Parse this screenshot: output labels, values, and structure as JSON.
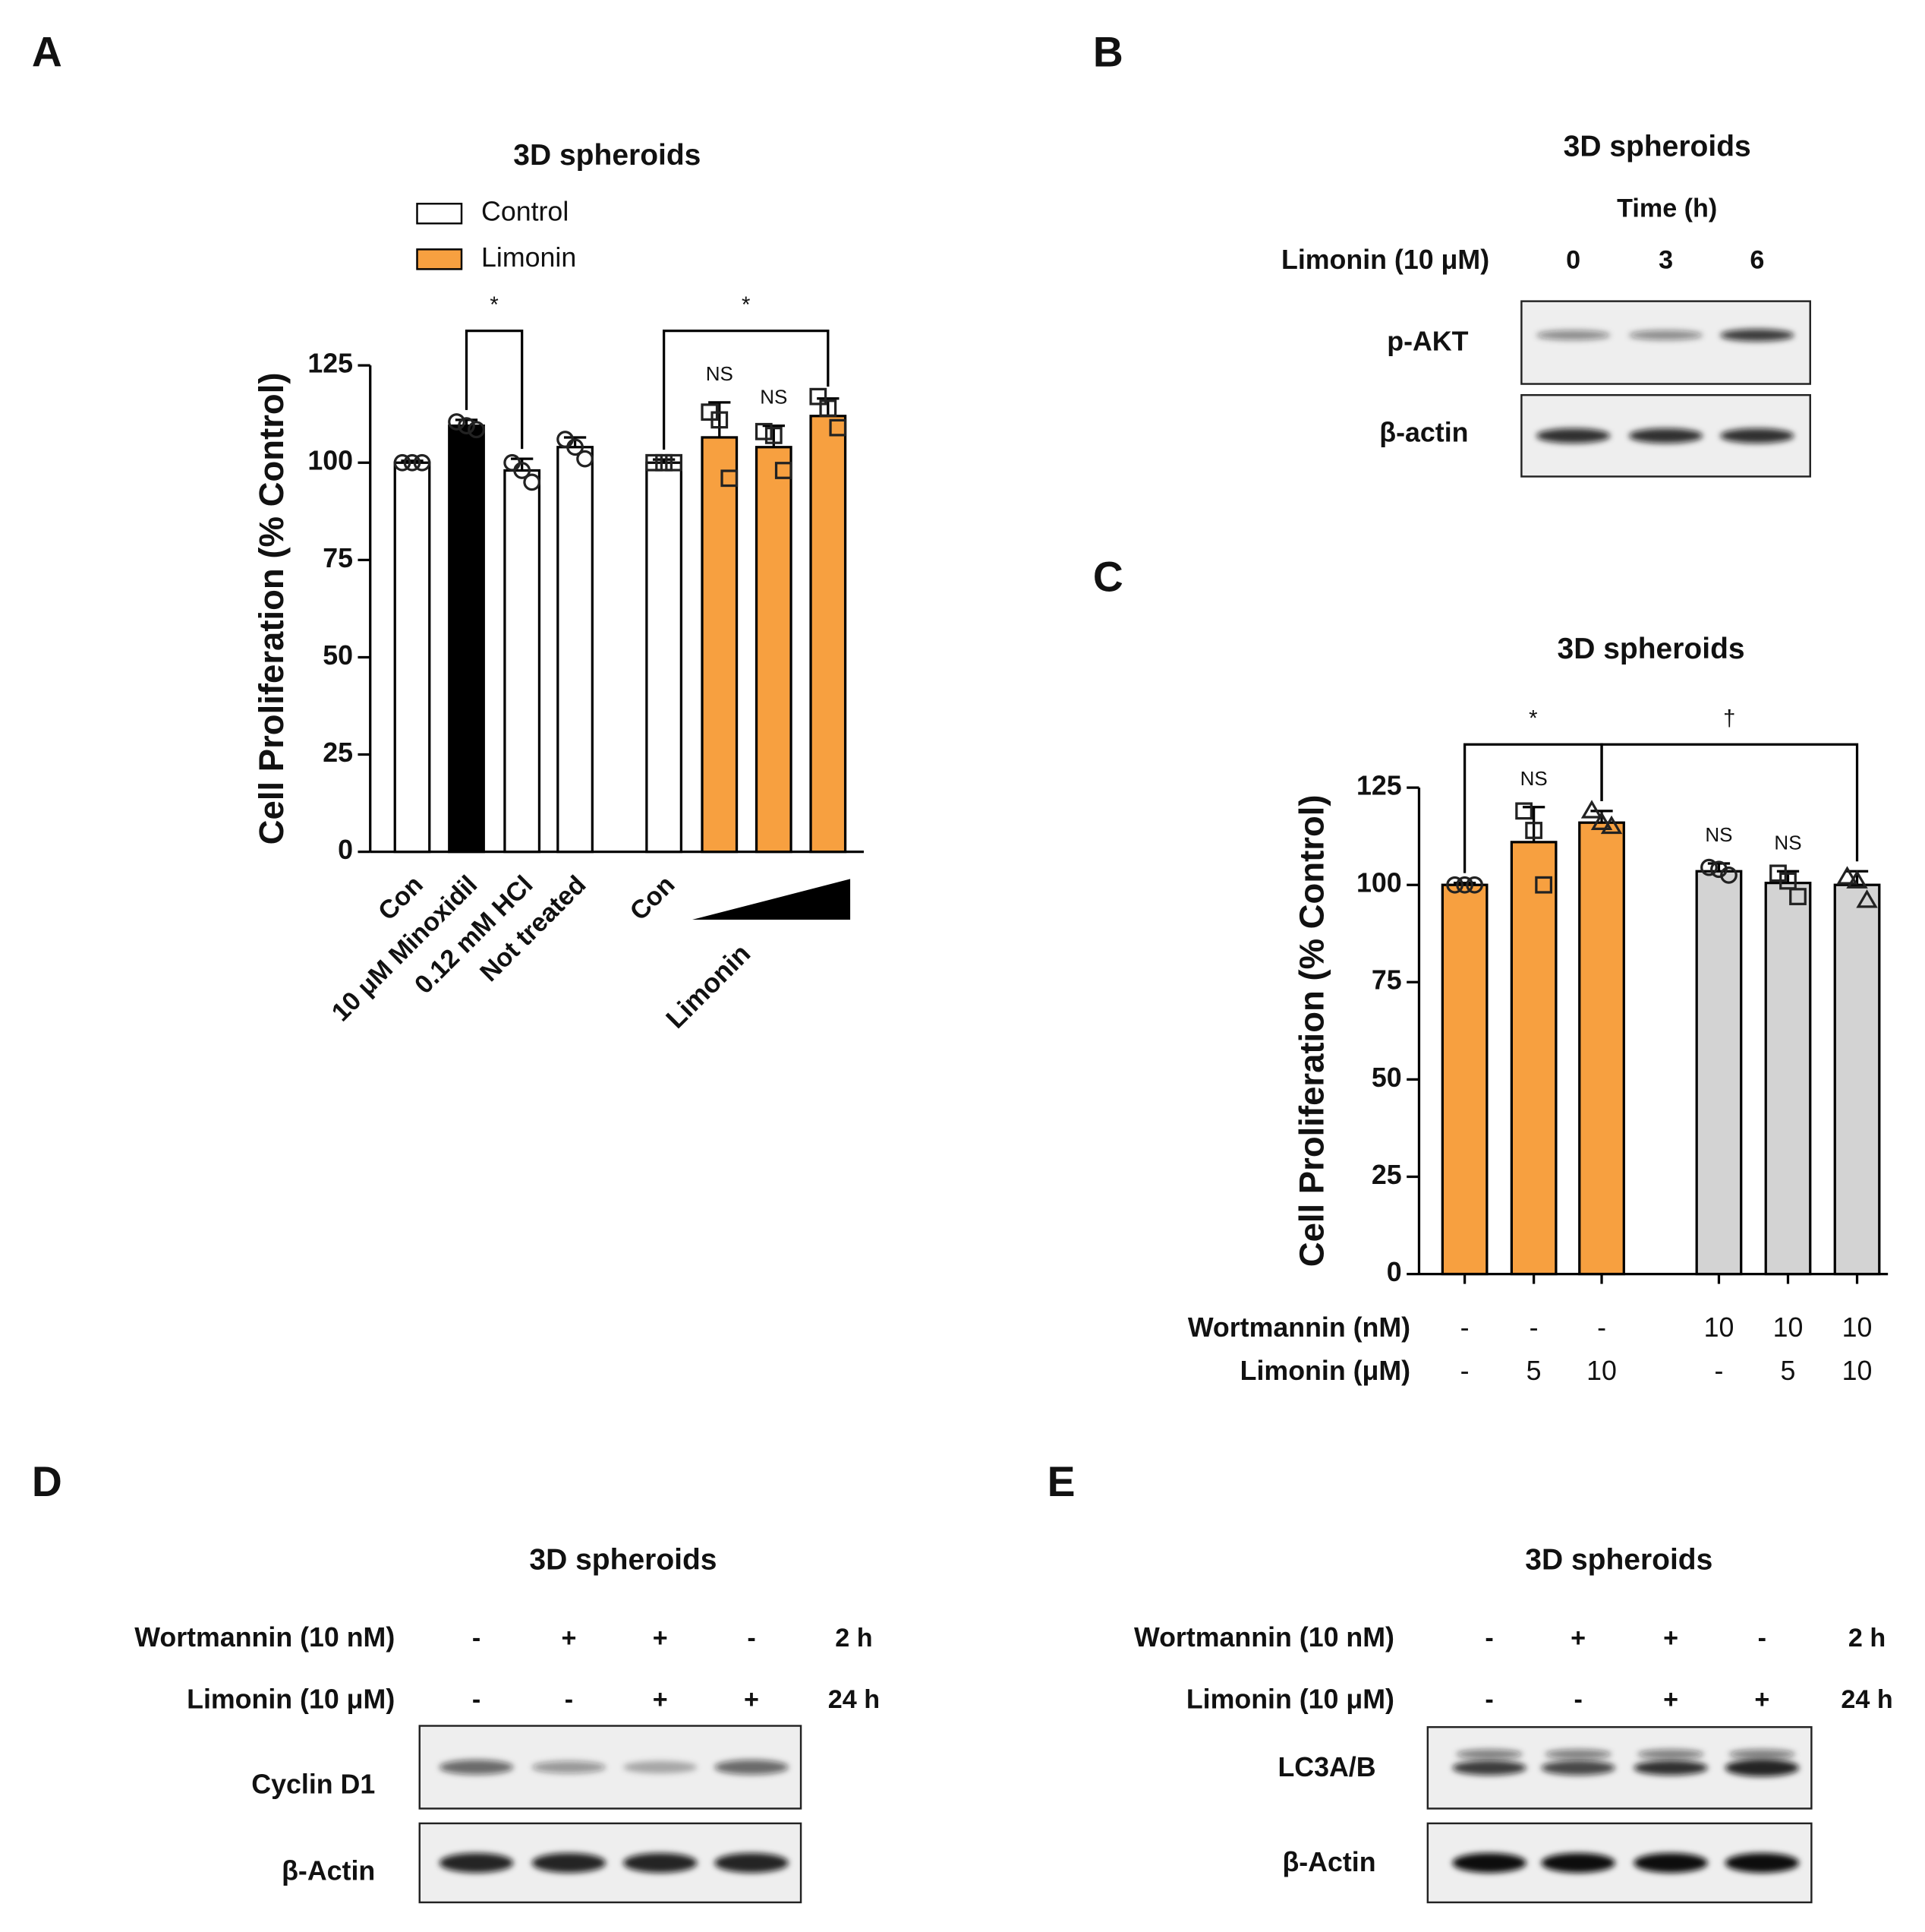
{
  "chart_data": [
    {
      "type": "bar",
      "panel": "A",
      "title": "3D spheroids",
      "ylabel": "Cell Proliferation (% Control)",
      "legend": [
        {
          "name": "Control",
          "color": "#ffffff"
        },
        {
          "name": "Limonin",
          "color": "#f7a040"
        }
      ],
      "categories": [
        "Con",
        "10 μM  Minoxidil",
        "0.12 mM HCl",
        "Not treated",
        "Con",
        null,
        null,
        null
      ],
      "group_label": "Limonin",
      "values": [
        100,
        109.5,
        98,
        104,
        100,
        106.5,
        104,
        112
      ],
      "errors": [
        0.5,
        1.5,
        3,
        2.5,
        0.8,
        9,
        5.5,
        4.5
      ],
      "colors": [
        "#ffffff",
        "#000000",
        "#ffffff",
        "#ffffff",
        "#ffffff",
        "#f7a040",
        "#f7a040",
        "#f7a040"
      ],
      "markers": [
        "circle",
        "circle",
        "circle",
        "circle",
        "square",
        "square",
        "square",
        "square"
      ],
      "points": [
        [
          100,
          100,
          100
        ],
        [
          110.5,
          109.5,
          108.5
        ],
        [
          100,
          98,
          95
        ],
        [
          106,
          104,
          101
        ],
        [
          100,
          100,
          100
        ],
        [
          113,
          111,
          96
        ],
        [
          108,
          107,
          98
        ],
        [
          117,
          114,
          109
        ]
      ],
      "brackets": [
        {
          "text": "*",
          "from": 1,
          "to": 2
        },
        {
          "text": "*",
          "from": 4,
          "to": 7
        }
      ],
      "ns": {
        "text": "NS",
        "bars": [
          5,
          6
        ]
      },
      "ylim": [
        0,
        125
      ],
      "yticks": [
        0,
        25,
        50,
        75,
        100,
        125
      ]
    },
    {
      "type": "bar",
      "panel": "C",
      "title": "3D spheroids",
      "ylabel": "Cell Proliferation (% Control)",
      "categories": [
        null,
        null,
        null,
        null,
        null,
        null
      ],
      "x_rows": [
        {
          "label": "Wortmannin (nM)",
          "values": [
            "-",
            "-",
            "-",
            "10",
            "10",
            "10"
          ]
        },
        {
          "label": "Limonin (μM)",
          "values": [
            "-",
            "5",
            "10",
            "-",
            "5",
            "10"
          ]
        }
      ],
      "values": [
        100,
        111,
        116,
        103.5,
        100.5,
        100
      ],
      "errors": [
        0.5,
        9,
        3,
        2,
        3,
        3.5
      ],
      "colors": [
        "#f7a040",
        "#f7a040",
        "#f7a040",
        "#d3d3d3",
        "#d3d3d3",
        "#d3d3d3"
      ],
      "markers": [
        "circle",
        "square",
        "triangle",
        "circle",
        "square",
        "triangle"
      ],
      "points": [
        [
          100,
          100,
          100
        ],
        [
          119,
          114,
          100
        ],
        [
          119,
          116,
          115
        ],
        [
          104.5,
          104,
          102.5
        ],
        [
          103,
          101,
          97
        ],
        [
          102,
          101,
          96
        ]
      ],
      "brackets": [
        {
          "text": "*",
          "from": 0,
          "to": 2
        },
        {
          "text": "†",
          "from": 2,
          "to": 5
        }
      ],
      "ns": {
        "text": "NS",
        "bars": [
          1,
          3,
          4
        ]
      },
      "ylim": [
        0,
        125
      ],
      "yticks": [
        0,
        25,
        50,
        75,
        100,
        125
      ]
    }
  ],
  "blots": [
    {
      "panel": "B",
      "title": "3D spheroids",
      "subtitle": "Time (h)",
      "rows": [
        {
          "label": "Limonin (10 μM)",
          "values": [
            "0",
            "3",
            "6"
          ]
        }
      ],
      "bands": [
        "p-AKT",
        "β-actin"
      ]
    },
    {
      "panel": "D",
      "title": "3D spheroids",
      "rows": [
        {
          "label": "Wortmannin (10 nM)",
          "values": [
            "-",
            "+",
            "+",
            "-"
          ],
          "time": "2 h"
        },
        {
          "label": "Limonin (10 μM)",
          "values": [
            "-",
            "-",
            "+",
            "+"
          ],
          "time": "24 h"
        }
      ],
      "bands": [
        "Cyclin D1",
        "β-Actin"
      ]
    },
    {
      "panel": "E",
      "title": "3D spheroids",
      "rows": [
        {
          "label": "Wortmannin (10 nM)",
          "values": [
            "-",
            "+",
            "+",
            "-"
          ],
          "time": "2 h"
        },
        {
          "label": "Limonin (10 μM)",
          "values": [
            "-",
            "-",
            "+",
            "+"
          ],
          "time": "24 h"
        }
      ],
      "bands": [
        "LC3A/B",
        "β-Actin"
      ]
    }
  ]
}
